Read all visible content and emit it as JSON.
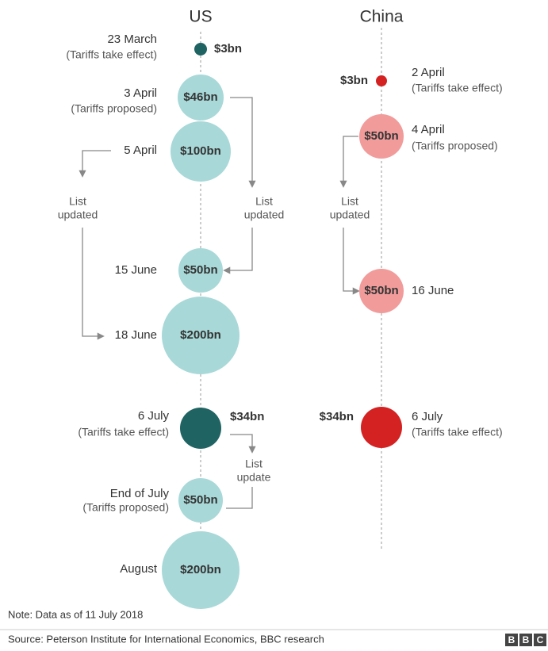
{
  "titles": {
    "us": "US",
    "china": "China"
  },
  "us": [
    {
      "date": "23 March",
      "note": "(Tariffs take effect)",
      "amount": "$3bn"
    },
    {
      "date": "3 April",
      "note": "(Tariffs proposed)",
      "amount": "$46bn"
    },
    {
      "date": "5 April",
      "amount": "$100bn"
    },
    {
      "date": "15 June",
      "amount": "$50bn"
    },
    {
      "date": "18 June",
      "amount": "$200bn"
    },
    {
      "date": "6 July",
      "note": "(Tariffs take effect)",
      "amount": "$34bn"
    },
    {
      "date": "End of July",
      "note": "(Tariffs proposed)",
      "amount": "$50bn"
    },
    {
      "date": "August",
      "amount": "$200bn"
    }
  ],
  "china": [
    {
      "date": "2 April",
      "note": "(Tariffs take effect)",
      "amount": "$3bn"
    },
    {
      "date": "4 April",
      "note": "(Tariffs proposed)",
      "amount": "$50bn"
    },
    {
      "date": "16 June",
      "amount": "$50bn"
    },
    {
      "date": "6 July",
      "note": "(Tariffs take effect)",
      "amount": "$34bn"
    }
  ],
  "annotations": [
    {
      "line1": "List",
      "line2": "updated"
    },
    {
      "line1": "List",
      "line2": "updated"
    },
    {
      "line1": "List",
      "line2": "updated"
    },
    {
      "line1": "List",
      "line2": "update"
    }
  ],
  "note": "Note: Data as of 11 July 2018",
  "source": "Source: Peterson Institute for International Economics, BBC research",
  "logo": [
    "B",
    "B",
    "C"
  ]
}
